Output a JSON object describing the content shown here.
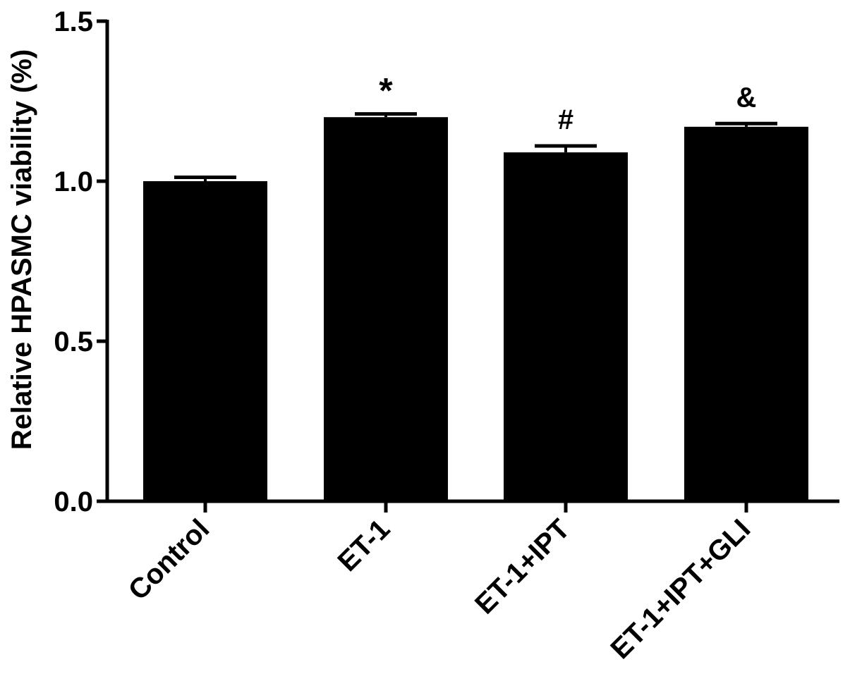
{
  "chart_data": {
    "type": "bar",
    "title": "",
    "xlabel": "",
    "ylabel": "Relative HPASMC viability (%)",
    "categories": [
      "Control",
      "ET-1",
      "ET-1+IPT",
      "ET-1+IPT+GLI"
    ],
    "values": [
      1.0,
      1.2,
      1.09,
      1.17
    ],
    "errors": [
      0.012,
      0.01,
      0.02,
      0.01
    ],
    "annotations": [
      "",
      "*",
      "#",
      "&"
    ],
    "ylim": [
      0,
      1.5
    ],
    "yticks": [
      0.0,
      0.5,
      1.0,
      1.5
    ],
    "ytick_labels": [
      "0.0",
      "0.5",
      "1.0",
      "1.5"
    ],
    "grid": false,
    "bar_color": "#000000"
  }
}
